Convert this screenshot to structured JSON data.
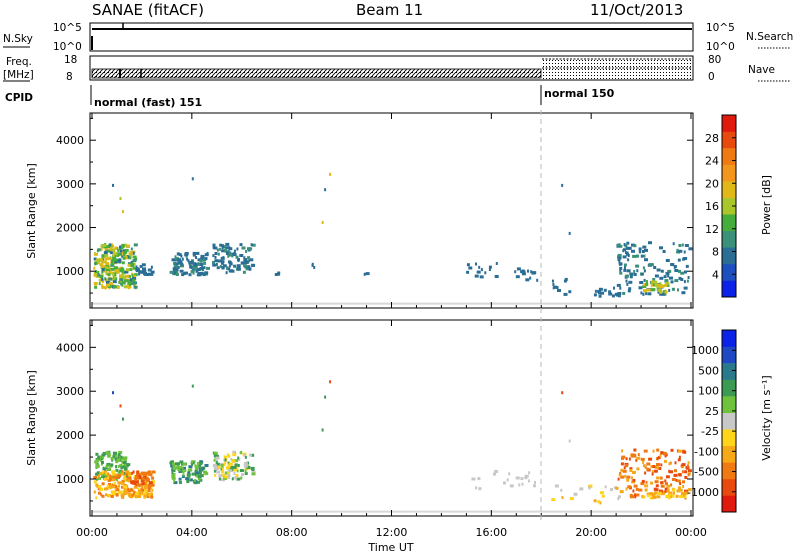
{
  "header": {
    "title": "SANAE (fitACF)",
    "beam": "Beam 11",
    "date": "11/Oct/2013"
  },
  "status_panels": {
    "nsky_label": "N.Sky",
    "nsearch_label": "N.Search",
    "nsky_top": "10^5",
    "nsky_bottom": "10^0",
    "nsearch_top": "10^5",
    "nsearch_bottom": "10^0",
    "freq_label_1": "Freq.",
    "freq_label_2": "[MHz]",
    "freq_top": "18",
    "freq_bottom": "8",
    "nave_label": "Nave",
    "nave_top": "80",
    "nave_bottom": "0",
    "cpid_label": "CPID",
    "modes": [
      {
        "name": "normal (fast) 151",
        "start_hour": 0
      },
      {
        "name": "normal 150",
        "start_hour": 18
      }
    ]
  },
  "chart_data": [
    {
      "type": "heatmap",
      "name": "power",
      "ylabel": "Slant Range [km]",
      "xlabel": "",
      "ylim": [
        180,
        4600
      ],
      "xlim_hours": [
        0,
        24
      ],
      "yticks": [
        "4000",
        "3000",
        "2000",
        "1000"
      ],
      "ytick_values": [
        4000,
        3000,
        2000,
        1000
      ],
      "colorbar": {
        "label": "Power [dB]",
        "ticks": [
          "28",
          "24",
          "20",
          "16",
          "12",
          "8",
          "4"
        ],
        "tick_values": [
          28,
          24,
          20,
          16,
          12,
          8,
          4
        ],
        "range": [
          0,
          32
        ],
        "colors": [
          "#0a23e6",
          "#1e4fbf",
          "#2b6e95",
          "#3a9078",
          "#44ad3c",
          "#a9c62a",
          "#e0b818",
          "#f2961c",
          "#f07a12",
          "#e84a0e",
          "#e01a0c"
        ]
      },
      "clusters": [
        {
          "t0": 0.05,
          "t1": 1.7,
          "r0": 650,
          "r1": 1650,
          "levels": [
            8,
            10,
            12,
            14,
            16,
            18,
            20
          ],
          "n": 260
        },
        {
          "t0": 1.7,
          "t1": 2.4,
          "r0": 950,
          "r1": 1200,
          "levels": [
            6,
            8
          ],
          "n": 30
        },
        {
          "t0": 3.1,
          "t1": 4.6,
          "r0": 950,
          "r1": 1450,
          "levels": [
            6,
            8,
            10
          ],
          "n": 90
        },
        {
          "t0": 4.8,
          "t1": 6.4,
          "r0": 1000,
          "r1": 1650,
          "levels": [
            6,
            8,
            10
          ],
          "n": 100
        },
        {
          "t0": 7.3,
          "t1": 7.5,
          "r0": 950,
          "r1": 1050,
          "levels": [
            8
          ],
          "n": 3
        },
        {
          "t0": 8.7,
          "t1": 8.9,
          "r0": 1100,
          "r1": 1300,
          "levels": [
            8
          ],
          "n": 3
        },
        {
          "t0": 10.8,
          "t1": 11.0,
          "r0": 950,
          "r1": 1000,
          "levels": [
            6
          ],
          "n": 2
        },
        {
          "t0": 14.7,
          "t1": 16.3,
          "r0": 850,
          "r1": 1250,
          "levels": [
            6,
            8
          ],
          "n": 14
        },
        {
          "t0": 16.9,
          "t1": 17.8,
          "r0": 800,
          "r1": 1100,
          "levels": [
            6,
            8
          ],
          "n": 14
        },
        {
          "t0": 18.4,
          "t1": 19.1,
          "r0": 500,
          "r1": 900,
          "levels": [
            6,
            8
          ],
          "n": 10
        },
        {
          "t0": 20.1,
          "t1": 21.1,
          "r0": 450,
          "r1": 650,
          "levels": [
            6,
            8
          ],
          "n": 16
        },
        {
          "t0": 21.0,
          "t1": 23.9,
          "r0": 500,
          "r1": 1700,
          "levels": [
            6,
            8,
            10
          ],
          "n": 140
        },
        {
          "t0": 22.0,
          "t1": 23.0,
          "r0": 550,
          "r1": 800,
          "levels": [
            14,
            16,
            20
          ],
          "n": 35
        }
      ],
      "scatter_points": [
        {
          "t": 0.8,
          "r": 3000,
          "v": 8
        },
        {
          "t": 1.1,
          "r": 2700,
          "v": 16
        },
        {
          "t": 1.2,
          "r": 2400,
          "v": 20
        },
        {
          "t": 4.0,
          "r": 3150,
          "v": 8
        },
        {
          "t": 9.3,
          "r": 2900,
          "v": 8
        },
        {
          "t": 9.5,
          "r": 3250,
          "v": 20
        },
        {
          "t": 9.2,
          "r": 2150,
          "v": 20
        },
        {
          "t": 18.8,
          "r": 3000,
          "v": 8
        },
        {
          "t": 19.1,
          "r": 1900,
          "v": 8
        }
      ]
    },
    {
      "type": "heatmap",
      "name": "velocity",
      "ylabel": "Slant Range [km]",
      "xlabel": "Time UT",
      "ylim": [
        180,
        4600
      ],
      "xlim_hours": [
        0,
        24
      ],
      "xticks": [
        "00:00",
        "04:00",
        "08:00",
        "12:00",
        "16:00",
        "20:00",
        "00:00"
      ],
      "xtick_hours": [
        0,
        4,
        8,
        12,
        16,
        20,
        24
      ],
      "yticks": [
        "4000",
        "3000",
        "2000",
        "1000"
      ],
      "ytick_values": [
        4000,
        3000,
        2000,
        1000
      ],
      "colorbar": {
        "label": "Velocity [m s⁻¹]",
        "ticks": [
          "1000",
          "500",
          "100",
          "25",
          "-25",
          "-100",
          "-500",
          "-1000"
        ],
        "colors": [
          "#0a23e6",
          "#1f49c3",
          "#2a7a8c",
          "#3d9a52",
          "#6fc23c",
          "#c8c8c8",
          "#ffd419",
          "#f6a817",
          "#f07a12",
          "#e84a0e",
          "#e01a0c"
        ]
      },
      "clusters": [
        {
          "t0": 0.05,
          "t1": 1.4,
          "r0": 1000,
          "r1": 1650,
          "levels": [
            3,
            4
          ],
          "n": 120
        },
        {
          "t0": 0.05,
          "t1": 2.4,
          "r0": 600,
          "r1": 1200,
          "levels": [
            6,
            7,
            8
          ],
          "n": 180
        },
        {
          "t0": 1.4,
          "t1": 2.4,
          "r0": 900,
          "r1": 1200,
          "levels": [
            8,
            9
          ],
          "n": 40
        },
        {
          "t0": 3.1,
          "t1": 4.6,
          "r0": 950,
          "r1": 1450,
          "levels": [
            2,
            3,
            4
          ],
          "n": 90
        },
        {
          "t0": 4.8,
          "t1": 6.4,
          "r0": 1000,
          "r1": 1650,
          "levels": [
            3,
            4,
            5,
            6
          ],
          "n": 100
        },
        {
          "t0": 14.7,
          "t1": 17.8,
          "r0": 800,
          "r1": 1250,
          "levels": [
            5
          ],
          "n": 20
        },
        {
          "t0": 18.4,
          "t1": 21.1,
          "r0": 450,
          "r1": 900,
          "levels": [
            5,
            6,
            7
          ],
          "n": 22
        },
        {
          "t0": 21.0,
          "t1": 23.9,
          "r0": 600,
          "r1": 1700,
          "levels": [
            7,
            8,
            9
          ],
          "n": 150
        },
        {
          "t0": 22.0,
          "t1": 23.8,
          "r0": 600,
          "r1": 800,
          "levels": [
            6,
            7
          ],
          "n": 35
        }
      ],
      "scatter_points": [
        {
          "t": 0.8,
          "r": 3000,
          "v": 1
        },
        {
          "t": 1.1,
          "r": 2700,
          "v": 9
        },
        {
          "t": 1.2,
          "r": 2400,
          "v": 3
        },
        {
          "t": 4.0,
          "r": 3150,
          "v": 3
        },
        {
          "t": 9.3,
          "r": 2900,
          "v": 3
        },
        {
          "t": 9.5,
          "r": 3250,
          "v": 9
        },
        {
          "t": 9.2,
          "r": 2150,
          "v": 3
        },
        {
          "t": 18.8,
          "r": 3000,
          "v": 9
        },
        {
          "t": 19.1,
          "r": 1900,
          "v": 5
        }
      ]
    }
  ]
}
